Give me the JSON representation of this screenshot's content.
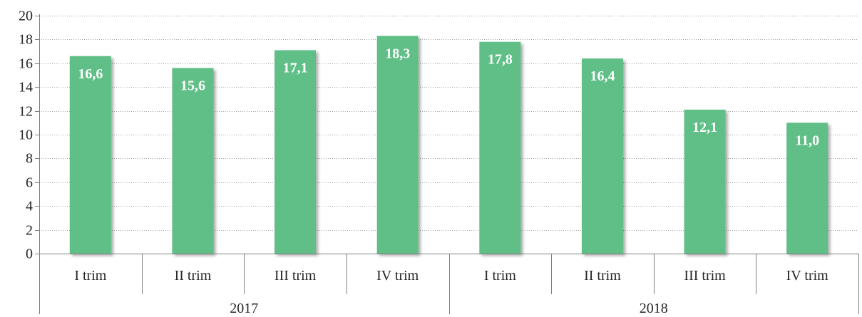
{
  "chart_data": {
    "type": "bar",
    "title": "",
    "xlabel": "",
    "ylabel": "",
    "ylim": [
      0,
      20
    ],
    "yticks": [
      0,
      2,
      4,
      6,
      8,
      10,
      12,
      14,
      16,
      18,
      20
    ],
    "grid": true,
    "legend": "none",
    "bar_color": "#5fbf86",
    "groups": [
      {
        "label": "2017",
        "categories": [
          "I trim",
          "II trim",
          "III trim",
          "IV trim"
        ]
      },
      {
        "label": "2018",
        "categories": [
          "I trim",
          "II trim",
          "III trim",
          "IV trim"
        ]
      }
    ],
    "categories": [
      "I trim",
      "II trim",
      "III trim",
      "IV trim",
      "I trim",
      "II trim",
      "III trim",
      "IV trim"
    ],
    "values": [
      16.6,
      15.6,
      17.1,
      18.3,
      17.8,
      16.4,
      12.1,
      11.0
    ],
    "data_labels": [
      "16,6",
      "15,6",
      "17,1",
      "18,3",
      "17,8",
      "16,4",
      "12,1",
      "11,0"
    ]
  }
}
